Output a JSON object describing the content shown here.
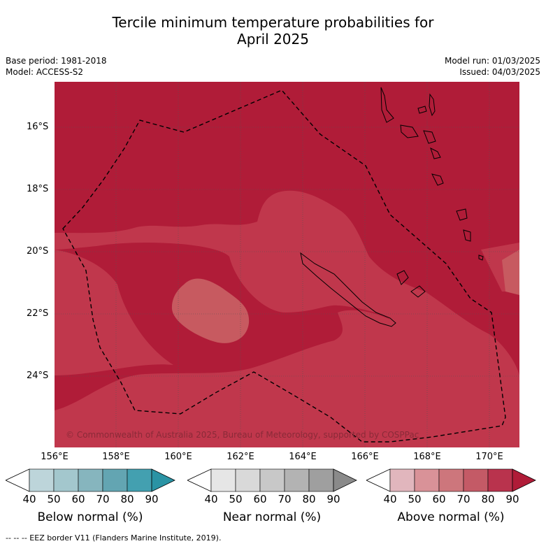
{
  "title_line1": "Tercile minimum temperature probabilities for",
  "title_line2": "April 2025",
  "base_period": "Base period: 1981-2018",
  "model": "Model: ACCESS-S2",
  "model_run": "Model run: 01/03/2025",
  "issued": "Issued: 04/03/2025",
  "copyright": "© Commonwealth of Australia 2025, Bureau of Meteorology, supported by COSPPac",
  "footer": "--  --  -- EEZ border V11 (Flanders Marine Institute, 2019).",
  "map": {
    "lat_labels": [
      "16°S",
      "18°S",
      "20°S",
      "22°S",
      "24°S"
    ],
    "lon_labels": [
      "156°E",
      "158°E",
      "160°E",
      "162°E",
      "164°E",
      "166°E",
      "168°E",
      "170°E"
    ],
    "colors": {
      "above_80_90": "#b01c38",
      "above_70_80": "#c0374c",
      "above_60_70": "#c75a60"
    }
  },
  "colorbars": [
    {
      "title": "Below normal (%)",
      "ticks": [
        "40",
        "50",
        "60",
        "70",
        "80",
        "90"
      ],
      "colors": [
        "#bdd5da",
        "#a3c7cd",
        "#86b5be",
        "#63a5b2",
        "#43a0b0",
        "#2a93a4"
      ]
    },
    {
      "title": "Near normal (%)",
      "ticks": [
        "40",
        "50",
        "60",
        "70",
        "80",
        "90"
      ],
      "colors": [
        "#e6e6e6",
        "#d9d9d9",
        "#c8c8c8",
        "#b3b3b3",
        "#9f9f9f",
        "#8a8a8a"
      ]
    },
    {
      "title": "Above normal (%)",
      "ticks": [
        "40",
        "50",
        "60",
        "70",
        "80",
        "90"
      ],
      "colors": [
        "#e1b6bd",
        "#d99298",
        "#cd767c",
        "#c45a66",
        "#b9334d",
        "#b01c38"
      ]
    }
  ]
}
